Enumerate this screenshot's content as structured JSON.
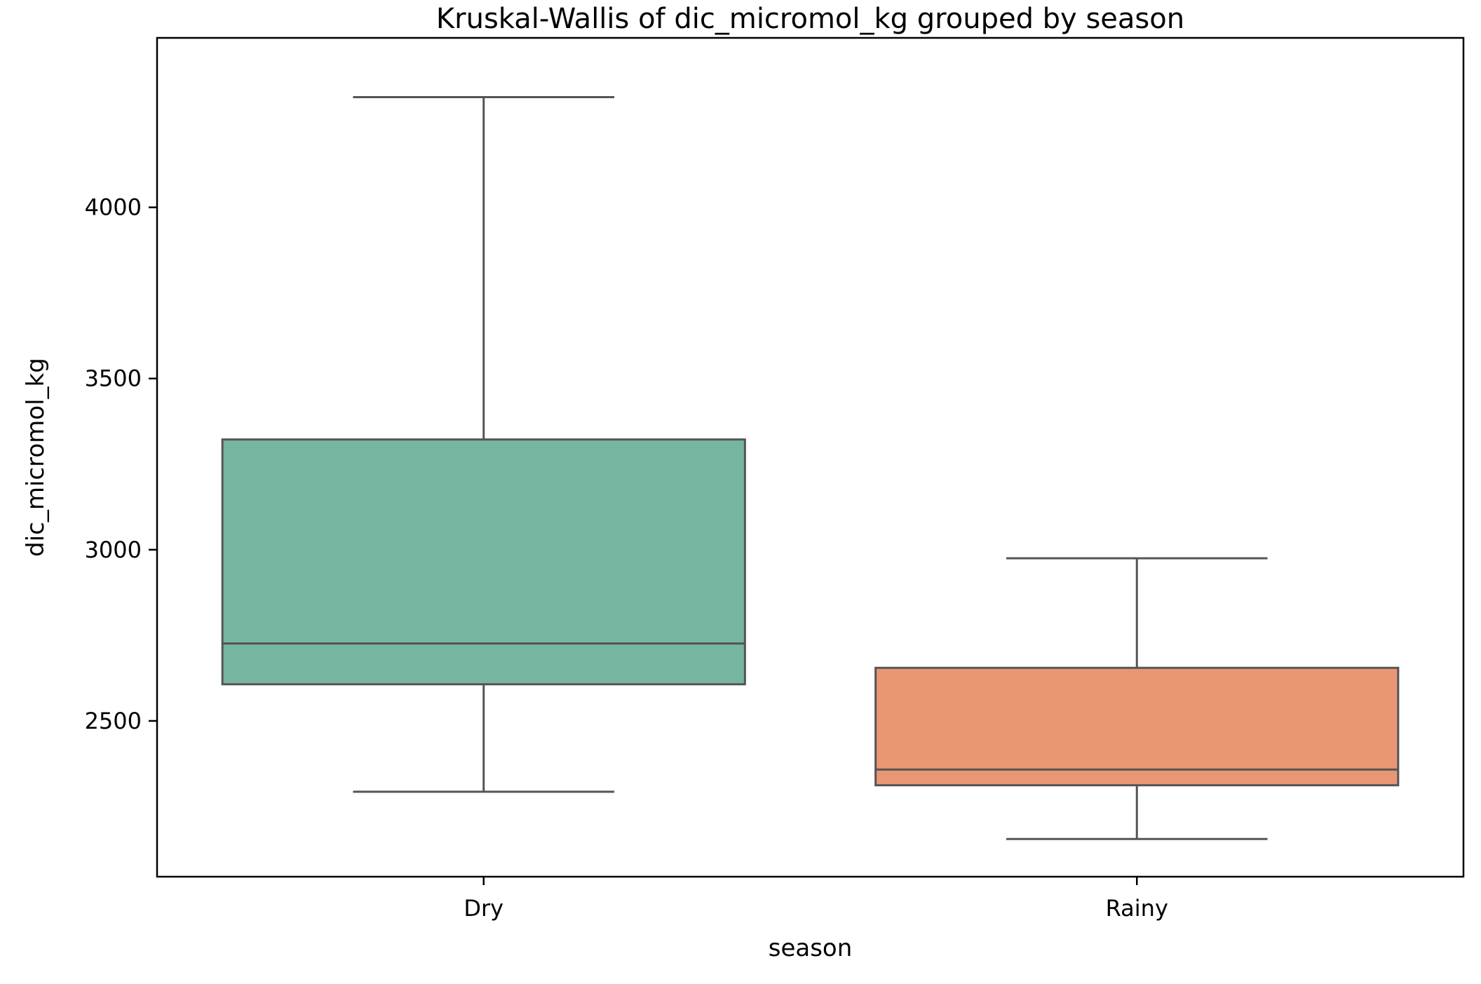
{
  "chart_data": {
    "type": "box",
    "title": "Kruskal-Wallis of dic_micromol_kg grouped by season",
    "xlabel": "season",
    "ylabel": "dic_micromol_kg",
    "categories": [
      "Dry",
      "Rainy"
    ],
    "yticks": [
      2500,
      3000,
      3500,
      4000
    ],
    "ylim": [
      2045,
      4495
    ],
    "grid": false,
    "boxes": [
      {
        "category": "Dry",
        "whisker_low": 2293,
        "q1": 2607,
        "median": 2726,
        "q3": 3322,
        "whisker_high": 4322,
        "color": "#76b5a0"
      },
      {
        "category": "Rainy",
        "whisker_low": 2155,
        "q1": 2312,
        "median": 2358,
        "q3": 2655,
        "whisker_high": 2975,
        "color": "#e99674"
      }
    ],
    "line_color": "#555555"
  }
}
